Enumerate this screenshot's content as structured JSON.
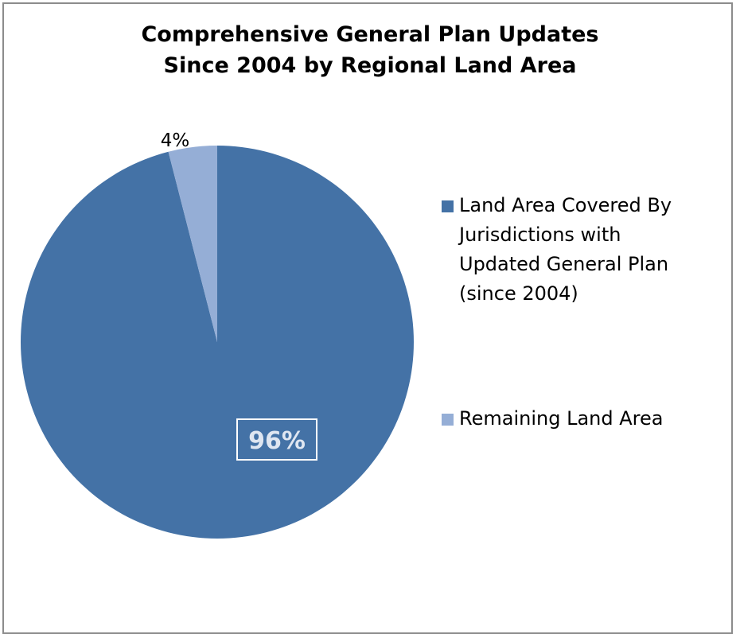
{
  "chart_data": {
    "type": "pie",
    "title_lines": [
      "Comprehensive General Plan Updates",
      "Since 2004 by Regional Land Area"
    ],
    "slices": [
      {
        "label": "Land Area Covered By Jurisdictions with Updated General Plan (since 2004)",
        "legend_lines": [
          "Land Area Covered By",
          "Jurisdictions with",
          "Updated General Plan",
          "(since 2004)"
        ],
        "value": 96,
        "data_label": "96%",
        "color": "#4472a6"
      },
      {
        "label": "Remaining Land Area",
        "legend_lines": [
          "Remaining Land Area"
        ],
        "value": 4,
        "data_label": "4%",
        "color": "#95aed6"
      }
    ],
    "legend_position": "right"
  }
}
